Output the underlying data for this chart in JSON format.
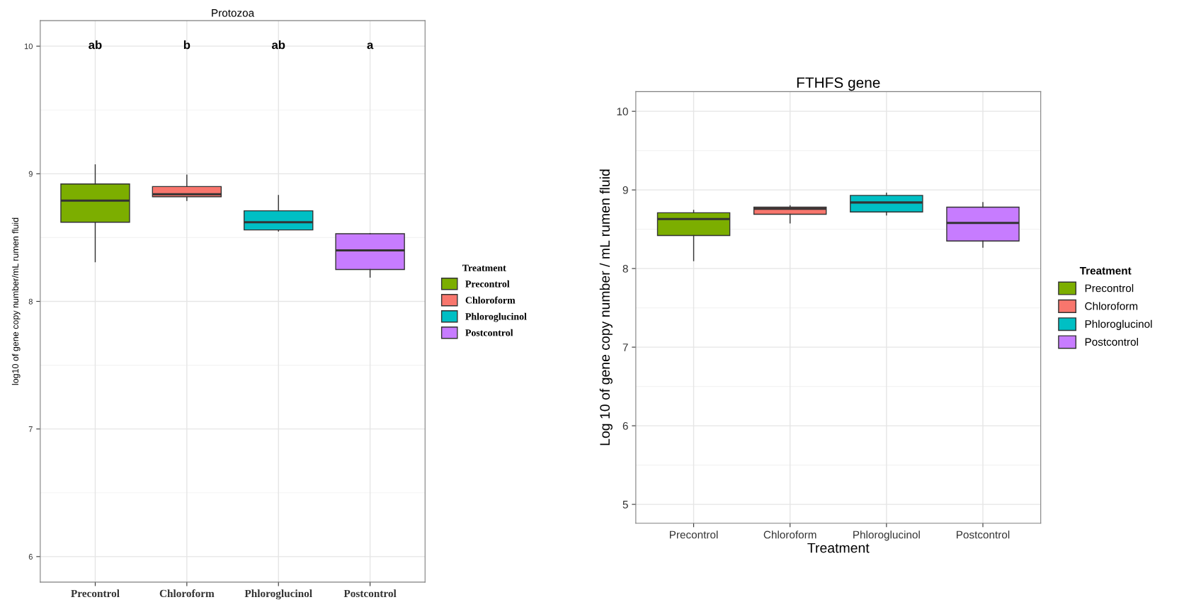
{
  "chart_data": [
    {
      "type": "box",
      "title": "Protozoa",
      "ylabel": "log10 of gene copy number/mL rumen fluid",
      "legend_title": "Treatment",
      "categories": [
        "Precontrol",
        "Chloroform",
        "Phloroglucinol",
        "Postcontrol"
      ],
      "series": [
        {
          "name": "Precontrol",
          "color": "#7cae00",
          "boxes": [
            {
              "low": 8.31,
              "q1": 8.62,
              "median": 8.79,
              "q3": 8.92,
              "high": 9.07
            },
            null,
            null,
            null
          ]
        },
        {
          "name": "Chloroform",
          "color": "#f8766d",
          "boxes": [
            null,
            {
              "low": 8.79,
              "q1": 8.82,
              "median": 8.84,
              "q3": 8.9,
              "high": 8.99
            },
            null,
            null
          ]
        },
        {
          "name": "Phloroglucinol",
          "color": "#00bfc4",
          "boxes": [
            null,
            null,
            {
              "low": 8.55,
              "q1": 8.56,
              "median": 8.62,
              "q3": 8.71,
              "high": 8.83
            },
            null
          ]
        },
        {
          "name": "Postcontrol",
          "color": "#c77cff",
          "boxes": [
            null,
            null,
            null,
            {
              "low": 8.19,
              "q1": 8.25,
              "median": 8.4,
              "q3": 8.53,
              "high": 8.53
            }
          ]
        }
      ],
      "annotations": [
        "ab",
        "b",
        "ab",
        "a"
      ],
      "ylim": [
        5.8,
        10.2
      ],
      "yticks": [
        6,
        7,
        8,
        9,
        10
      ],
      "grid": true,
      "legend": "right"
    },
    {
      "type": "box",
      "title": "FTHFS gene",
      "xlabel": "Treatment",
      "ylabel": "Log 10 of gene copy number / mL rumen fluid",
      "legend_title": "Treatment",
      "categories": [
        "Precontrol",
        "Chloroform",
        "Phloroglucinol",
        "Postcontrol"
      ],
      "series": [
        {
          "name": "Precontrol",
          "color": "#7cae00",
          "boxes": [
            {
              "low": 8.1,
              "q1": 8.42,
              "median": 8.63,
              "q3": 8.71,
              "high": 8.74
            },
            null,
            null,
            null
          ]
        },
        {
          "name": "Chloroform",
          "color": "#f8766d",
          "boxes": [
            null,
            {
              "low": 8.58,
              "q1": 8.69,
              "median": 8.76,
              "q3": 8.78,
              "high": 8.8
            },
            null,
            null
          ]
        },
        {
          "name": "Phloroglucinol",
          "color": "#00bfc4",
          "boxes": [
            null,
            null,
            {
              "low": 8.68,
              "q1": 8.72,
              "median": 8.84,
              "q3": 8.93,
              "high": 8.96
            },
            null
          ]
        },
        {
          "name": "Postcontrol",
          "color": "#c77cff",
          "boxes": [
            null,
            null,
            null,
            {
              "low": 8.27,
              "q1": 8.35,
              "median": 8.58,
              "q3": 8.78,
              "high": 8.84
            }
          ]
        }
      ],
      "ylim": [
        4.76,
        10.25
      ],
      "yticks": [
        5,
        6,
        7,
        8,
        9,
        10
      ],
      "grid": true,
      "legend": "right"
    }
  ]
}
